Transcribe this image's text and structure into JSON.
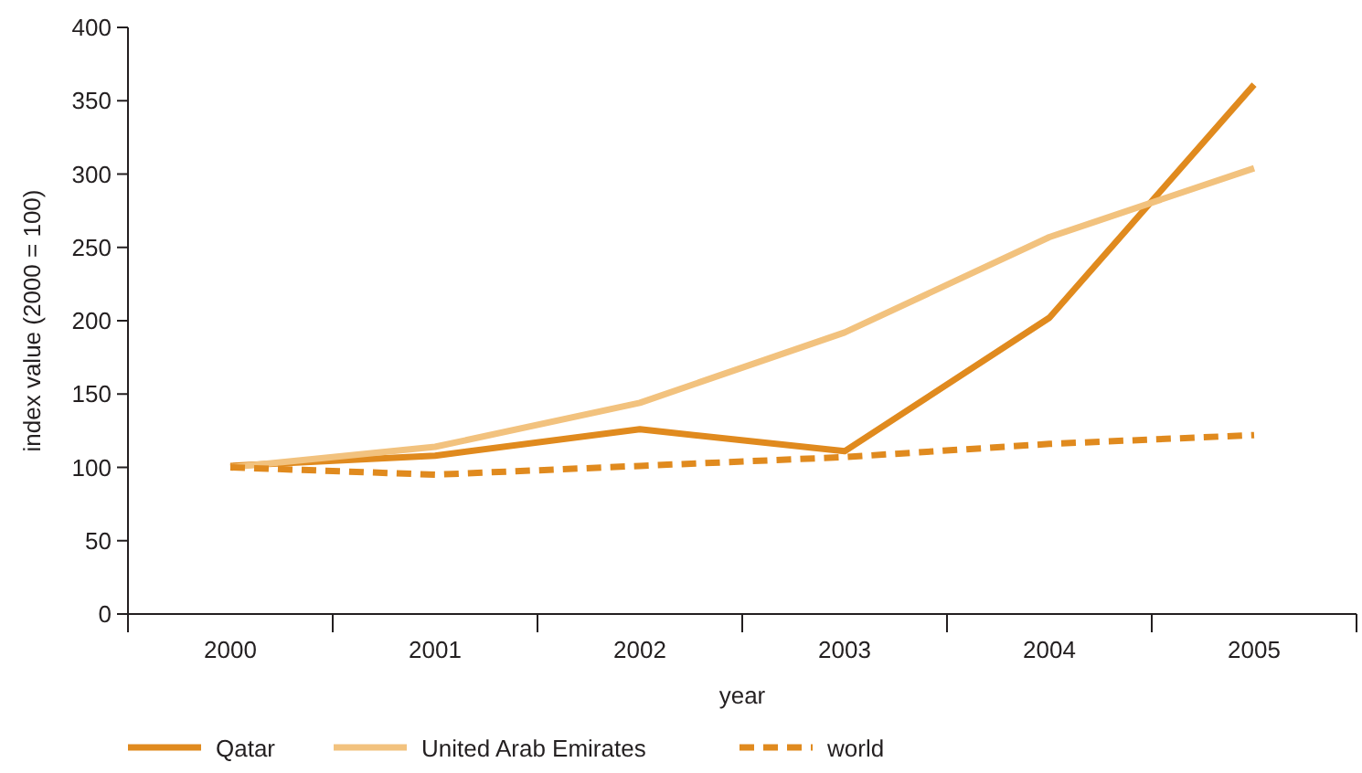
{
  "chart_data": {
    "type": "line",
    "xlabel": "year",
    "ylabel": "index value (2000 = 100)",
    "categories": [
      "2000",
      "2001",
      "2002",
      "2003",
      "2004",
      "2005"
    ],
    "series": [
      {
        "name": "Qatar",
        "color": "#e08a1e",
        "line_style": "solid",
        "values": [
          101,
          108,
          126,
          111,
          202,
          361
        ]
      },
      {
        "name": "United Arab Emirates",
        "color": "#f2c27e",
        "line_style": "solid",
        "values": [
          100,
          114,
          144,
          192,
          257,
          304
        ]
      },
      {
        "name": "world",
        "color": "#e08a1e",
        "line_style": "dashed",
        "values": [
          100,
          95,
          101,
          107,
          116,
          122
        ]
      }
    ],
    "ylim": [
      0,
      400
    ],
    "yticks": [
      0,
      50,
      100,
      150,
      200,
      250,
      300,
      350,
      400
    ],
    "grid": false,
    "legend": "bottom",
    "marker": "none"
  }
}
